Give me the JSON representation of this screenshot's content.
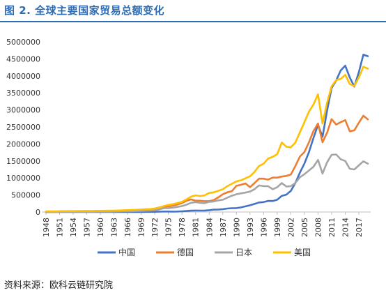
{
  "title": "图 2. 全球主要国家贸易总额变化",
  "source": "资料来源：欧科云链研究院",
  "chart_data": {
    "type": "line",
    "title": "图 2. 全球主要国家贸易总额变化",
    "xlabel": "",
    "ylabel": "",
    "ylim": [
      0,
      5000000
    ],
    "yticks": [
      0,
      500000,
      1000000,
      1500000,
      2000000,
      2500000,
      3000000,
      3500000,
      4000000,
      4500000,
      5000000
    ],
    "x": [
      1948,
      1949,
      1950,
      1951,
      1952,
      1953,
      1954,
      1955,
      1956,
      1957,
      1958,
      1959,
      1960,
      1961,
      1962,
      1963,
      1964,
      1965,
      1966,
      1967,
      1968,
      1969,
      1970,
      1971,
      1972,
      1973,
      1974,
      1975,
      1976,
      1977,
      1978,
      1979,
      1980,
      1981,
      1982,
      1983,
      1984,
      1985,
      1986,
      1987,
      1988,
      1989,
      1990,
      1991,
      1992,
      1993,
      1994,
      1995,
      1996,
      1997,
      1998,
      1999,
      2000,
      2001,
      2002,
      2003,
      2004,
      2005,
      2006,
      2007,
      2008,
      2009,
      2010,
      2011,
      2012,
      2013,
      2014,
      2015,
      2016,
      2017,
      2018,
      2019
    ],
    "xticks": [
      1948,
      1951,
      1954,
      1957,
      1960,
      1963,
      1966,
      1969,
      1972,
      1975,
      1978,
      1981,
      1984,
      1987,
      1990,
      1993,
      1996,
      1999,
      2002,
      2005,
      2008,
      2011,
      2014,
      2017
    ],
    "legend_position": "bottom",
    "grid": false,
    "series": [
      {
        "name": "中国",
        "color": "#4472c4",
        "values": [
          3000,
          3000,
          3000,
          3000,
          3000,
          3000,
          3000,
          3000,
          3000,
          3000,
          3000,
          3000,
          3000,
          3000,
          3000,
          3000,
          3000,
          3000,
          3000,
          3000,
          3000,
          3000,
          5000,
          5000,
          6000,
          10000,
          14000,
          15000,
          13000,
          15000,
          21000,
          29000,
          38000,
          44000,
          42000,
          43000,
          54000,
          70000,
          74000,
          83000,
          103000,
          112000,
          115000,
          136000,
          166000,
          196000,
          237000,
          281000,
          290000,
          325000,
          324000,
          361000,
          474000,
          510000,
          621000,
          851000,
          1155000,
          1422000,
          1760000,
          2174000,
          2563000,
          2208000,
          2974000,
          3642000,
          3867000,
          4159000,
          4302000,
          3953000,
          3685000,
          4107000,
          4623000,
          4578000
        ]
      },
      {
        "name": "德国",
        "color": "#ed7d31",
        "values": [
          3000,
          4000,
          5000,
          8000,
          10000,
          11000,
          13000,
          15000,
          18000,
          20000,
          21000,
          24000,
          27000,
          29000,
          31000,
          34000,
          38000,
          42000,
          45000,
          48000,
          54000,
          62000,
          72000,
          82000,
          97000,
          135000,
          158000,
          165000,
          190000,
          220000,
          264000,
          330000,
          370000,
          335000,
          330000,
          320000,
          320000,
          350000,
          430000,
          520000,
          580000,
          610000,
          770000,
          800000,
          840000,
          730000,
          850000,
          980000,
          980000,
          950000,
          1010000,
          1010000,
          1040000,
          1060000,
          1100000,
          1350000,
          1630000,
          1760000,
          2050000,
          2380000,
          2600000,
          2050000,
          2330000,
          2730000,
          2570000,
          2640000,
          2700000,
          2370000,
          2400000,
          2620000,
          2830000,
          2720000
        ]
      },
      {
        "name": "日本",
        "color": "#a5a5a5",
        "values": [
          2000,
          2000,
          2000,
          3000,
          4000,
          5000,
          5000,
          6000,
          7000,
          8000,
          7000,
          9000,
          10000,
          12000,
          13000,
          15000,
          18000,
          21000,
          23000,
          25000,
          29000,
          33000,
          38000,
          43000,
          52000,
          75000,
          112000,
          115000,
          130000,
          150000,
          175000,
          215000,
          270000,
          290000,
          270000,
          260000,
          300000,
          310000,
          340000,
          360000,
          420000,
          480000,
          520000,
          550000,
          570000,
          600000,
          670000,
          780000,
          760000,
          760000,
          670000,
          730000,
          850000,
          750000,
          760000,
          850000,
          1020000,
          1110000,
          1220000,
          1330000,
          1530000,
          1130000,
          1460000,
          1680000,
          1690000,
          1550000,
          1500000,
          1270000,
          1250000,
          1370000,
          1490000,
          1420000
        ]
      },
      {
        "name": "美国",
        "color": "#ffc000",
        "values": [
          20000,
          19000,
          18000,
          25000,
          26000,
          27000,
          27000,
          28000,
          31000,
          33000,
          31000,
          34000,
          35000,
          36000,
          39000,
          42000,
          46000,
          49000,
          55000,
          59000,
          66000,
          73000,
          83000,
          86000,
          101000,
          134000,
          175000,
          210000,
          230000,
          260000,
          300000,
          370000,
          450000,
          490000,
          470000,
          490000,
          560000,
          580000,
          620000,
          670000,
          760000,
          830000,
          900000,
          930000,
          990000,
          1050000,
          1180000,
          1350000,
          1420000,
          1570000,
          1620000,
          1700000,
          2040000,
          1920000,
          1900000,
          2040000,
          2340000,
          2640000,
          2950000,
          3160000,
          3460000,
          2600000,
          3210000,
          3690000,
          3880000,
          3910000,
          4030000,
          3760000,
          3700000,
          3950000,
          4270000,
          4210000
        ]
      }
    ]
  }
}
